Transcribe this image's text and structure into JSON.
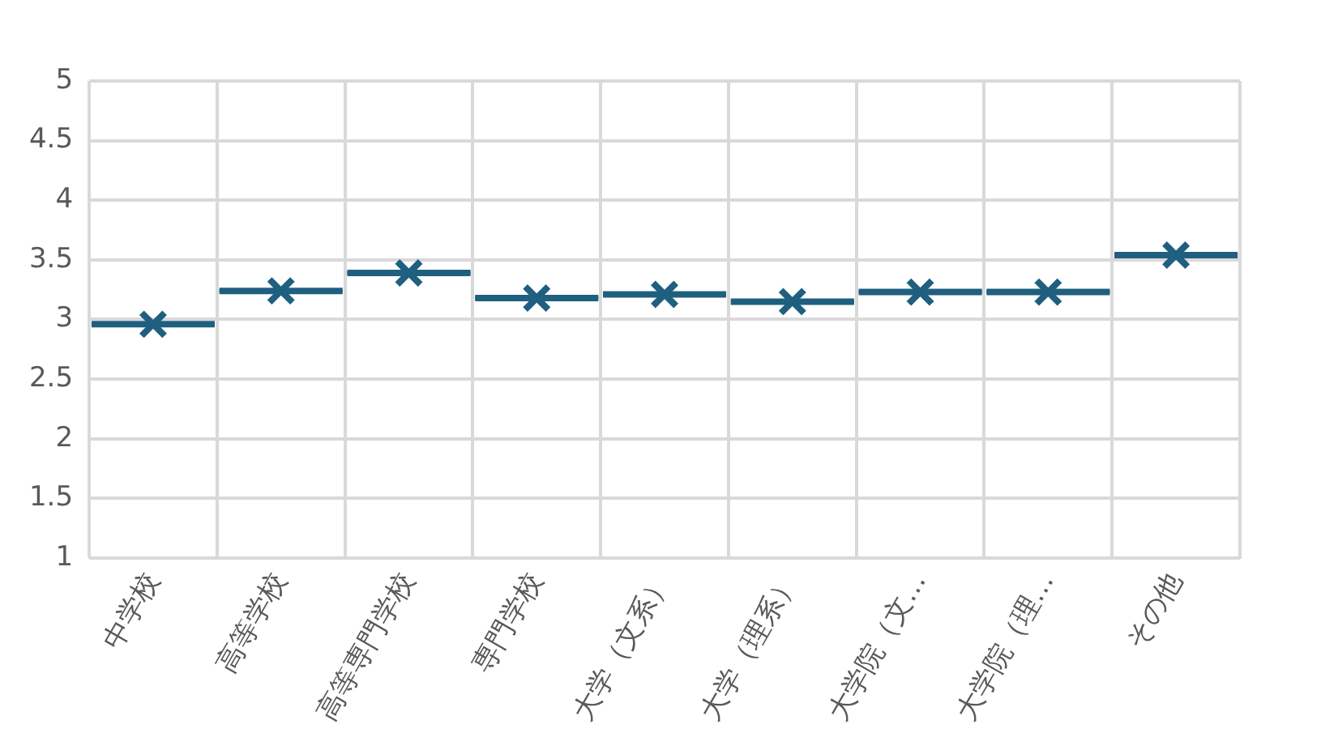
{
  "chart_data": {
    "type": "box",
    "categories": [
      "中学校",
      "高等学校",
      "高等専門学校",
      "専門学校",
      "大学（文系）",
      "大学（理系）",
      "大学院（文…",
      "大学院（理…",
      "その他"
    ],
    "color": "#1f5f7f",
    "boxes": [
      {
        "low": 2.96,
        "q1": 2.96,
        "median": 2.96,
        "q3": 2.96,
        "high": 2.96,
        "mean": 2.96
      },
      {
        "low": 3.24,
        "q1": 3.24,
        "median": 3.24,
        "q3": 3.24,
        "high": 3.24,
        "mean": 3.24
      },
      {
        "low": 3.39,
        "q1": 3.39,
        "median": 3.39,
        "q3": 3.39,
        "high": 3.39,
        "mean": 3.39
      },
      {
        "low": 3.18,
        "q1": 3.18,
        "median": 3.18,
        "q3": 3.18,
        "high": 3.18,
        "mean": 3.18
      },
      {
        "low": 3.21,
        "q1": 3.21,
        "median": 3.21,
        "q3": 3.21,
        "high": 3.21,
        "mean": 3.21
      },
      {
        "low": 3.15,
        "q1": 3.15,
        "median": 3.15,
        "q3": 3.15,
        "high": 3.15,
        "mean": 3.15
      },
      {
        "low": 3.23,
        "q1": 3.23,
        "median": 3.23,
        "q3": 3.23,
        "high": 3.23,
        "mean": 3.23
      },
      {
        "low": 3.23,
        "q1": 3.23,
        "median": 3.23,
        "q3": 3.23,
        "high": 3.23,
        "mean": 3.23
      },
      {
        "low": 3.54,
        "q1": 3.54,
        "median": 3.54,
        "q3": 3.54,
        "high": 3.54,
        "mean": 3.54
      }
    ],
    "ylim": [
      1,
      5
    ],
    "yticks": [
      1,
      1.5,
      2,
      2.5,
      3,
      3.5,
      4,
      4.5,
      5
    ],
    "grid": true,
    "legend": false,
    "marker": "cross"
  }
}
